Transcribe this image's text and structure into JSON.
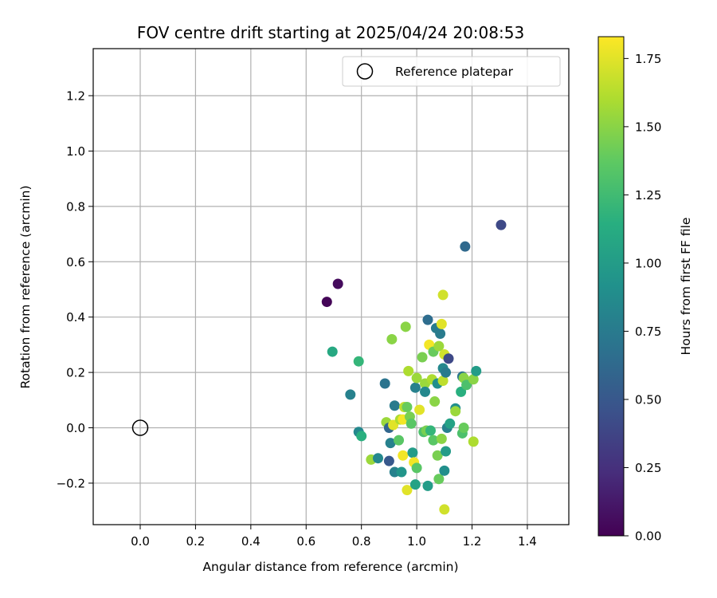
{
  "chart_data": {
    "type": "scatter",
    "title": "FOV centre drift starting at 2025/04/24 20:08:53",
    "xlabel": "Angular distance from reference (arcmin)",
    "ylabel": "Rotation from reference (arcmin)",
    "xlim": [
      -0.17,
      1.55
    ],
    "ylim": [
      -0.35,
      1.37
    ],
    "xticks": [
      "0.0",
      "0.2",
      "0.4",
      "0.6",
      "0.8",
      "1.0",
      "1.2",
      "1.4"
    ],
    "yticks": [
      "−0.2",
      "0.0",
      "0.2",
      "0.4",
      "0.6",
      "0.8",
      "1.0",
      "1.2"
    ],
    "grid": true,
    "legend": {
      "position": "top-right",
      "entries": [
        "Reference platepar"
      ]
    },
    "colorbar": {
      "label": "Hours from first FF file",
      "colormap": "viridis",
      "range": [
        0.0,
        1.83
      ],
      "ticks": [
        "0.00",
        "0.25",
        "0.50",
        "0.75",
        "1.00",
        "1.25",
        "1.50",
        "1.75"
      ]
    },
    "reference_point": {
      "x": 0.0,
      "y": 0.0
    },
    "points": [
      {
        "x": 0.675,
        "y": 0.455,
        "c": 0.02
      },
      {
        "x": 0.715,
        "y": 0.52,
        "c": 0.05
      },
      {
        "x": 1.305,
        "y": 0.733,
        "c": 0.4
      },
      {
        "x": 1.175,
        "y": 0.655,
        "c": 0.62
      },
      {
        "x": 0.695,
        "y": 0.275,
        "c": 1.1
      },
      {
        "x": 0.79,
        "y": 0.24,
        "c": 1.2
      },
      {
        "x": 0.76,
        "y": 0.12,
        "c": 0.8
      },
      {
        "x": 0.79,
        "y": -0.015,
        "c": 0.85
      },
      {
        "x": 0.8,
        "y": -0.03,
        "c": 1.15
      },
      {
        "x": 0.835,
        "y": -0.115,
        "c": 1.55
      },
      {
        "x": 0.86,
        "y": -0.11,
        "c": 0.85
      },
      {
        "x": 0.885,
        "y": 0.16,
        "c": 0.7
      },
      {
        "x": 0.89,
        "y": 0.02,
        "c": 1.55
      },
      {
        "x": 0.9,
        "y": -0.12,
        "c": 0.5
      },
      {
        "x": 0.9,
        "y": 0.0,
        "c": 0.6
      },
      {
        "x": 0.905,
        "y": -0.055,
        "c": 0.8
      },
      {
        "x": 0.91,
        "y": 0.32,
        "c": 1.5
      },
      {
        "x": 0.915,
        "y": 0.01,
        "c": 1.75
      },
      {
        "x": 0.92,
        "y": -0.16,
        "c": 0.8
      },
      {
        "x": 0.92,
        "y": 0.08,
        "c": 0.75
      },
      {
        "x": 0.935,
        "y": -0.045,
        "c": 1.35
      },
      {
        "x": 0.94,
        "y": 0.03,
        "c": 1.6
      },
      {
        "x": 0.945,
        "y": -0.16,
        "c": 0.95
      },
      {
        "x": 0.95,
        "y": 0.03,
        "c": 1.8
      },
      {
        "x": 0.95,
        "y": -0.1,
        "c": 1.8
      },
      {
        "x": 0.955,
        "y": 0.075,
        "c": 1.65
      },
      {
        "x": 0.96,
        "y": 0.365,
        "c": 1.5
      },
      {
        "x": 0.965,
        "y": 0.075,
        "c": 1.4
      },
      {
        "x": 0.965,
        "y": -0.225,
        "c": 1.75
      },
      {
        "x": 0.97,
        "y": 0.205,
        "c": 1.6
      },
      {
        "x": 0.975,
        "y": 0.04,
        "c": 1.45
      },
      {
        "x": 0.98,
        "y": 0.015,
        "c": 1.35
      },
      {
        "x": 0.985,
        "y": -0.09,
        "c": 1.0
      },
      {
        "x": 0.99,
        "y": -0.125,
        "c": 1.8
      },
      {
        "x": 0.995,
        "y": 0.145,
        "c": 0.8
      },
      {
        "x": 0.995,
        "y": -0.205,
        "c": 1.05
      },
      {
        "x": 1.0,
        "y": 0.18,
        "c": 1.55
      },
      {
        "x": 1.0,
        "y": -0.145,
        "c": 1.35
      },
      {
        "x": 1.01,
        "y": 0.065,
        "c": 1.75
      },
      {
        "x": 1.02,
        "y": 0.255,
        "c": 1.45
      },
      {
        "x": 1.025,
        "y": -0.015,
        "c": 1.3
      },
      {
        "x": 1.03,
        "y": 0.16,
        "c": 1.55
      },
      {
        "x": 1.03,
        "y": 0.13,
        "c": 0.85
      },
      {
        "x": 1.035,
        "y": -0.01,
        "c": 1.45
      },
      {
        "x": 1.04,
        "y": 0.39,
        "c": 0.65
      },
      {
        "x": 1.04,
        "y": -0.21,
        "c": 1.0
      },
      {
        "x": 1.045,
        "y": 0.3,
        "c": 1.8
      },
      {
        "x": 1.05,
        "y": -0.01,
        "c": 1.2
      },
      {
        "x": 1.055,
        "y": 0.175,
        "c": 1.6
      },
      {
        "x": 1.06,
        "y": 0.275,
        "c": 1.4
      },
      {
        "x": 1.06,
        "y": -0.045,
        "c": 1.35
      },
      {
        "x": 1.065,
        "y": 0.095,
        "c": 1.5
      },
      {
        "x": 1.07,
        "y": 0.36,
        "c": 0.75
      },
      {
        "x": 1.075,
        "y": 0.16,
        "c": 0.9
      },
      {
        "x": 1.075,
        "y": -0.1,
        "c": 1.45
      },
      {
        "x": 1.08,
        "y": 0.295,
        "c": 1.55
      },
      {
        "x": 1.08,
        "y": -0.185,
        "c": 1.4
      },
      {
        "x": 1.085,
        "y": 0.34,
        "c": 0.75
      },
      {
        "x": 1.09,
        "y": 0.375,
        "c": 1.75
      },
      {
        "x": 1.09,
        "y": -0.04,
        "c": 1.5
      },
      {
        "x": 1.095,
        "y": 0.48,
        "c": 1.7
      },
      {
        "x": 1.095,
        "y": 0.215,
        "c": 0.85
      },
      {
        "x": 1.095,
        "y": 0.17,
        "c": 1.65
      },
      {
        "x": 1.1,
        "y": 0.265,
        "c": 1.7
      },
      {
        "x": 1.1,
        "y": -0.155,
        "c": 0.9
      },
      {
        "x": 1.1,
        "y": -0.295,
        "c": 1.7
      },
      {
        "x": 1.105,
        "y": -0.085,
        "c": 1.0
      },
      {
        "x": 1.105,
        "y": 0.2,
        "c": 0.75
      },
      {
        "x": 1.11,
        "y": 0.0,
        "c": 0.8
      },
      {
        "x": 1.115,
        "y": 0.25,
        "c": 0.4
      },
      {
        "x": 1.12,
        "y": 0.015,
        "c": 1.05
      },
      {
        "x": 1.14,
        "y": 0.07,
        "c": 0.9
      },
      {
        "x": 1.14,
        "y": 0.06,
        "c": 1.55
      },
      {
        "x": 1.16,
        "y": 0.13,
        "c": 1.15
      },
      {
        "x": 1.165,
        "y": -0.02,
        "c": 1.3
      },
      {
        "x": 1.165,
        "y": 0.185,
        "c": 0.7
      },
      {
        "x": 1.17,
        "y": 0.18,
        "c": 1.5
      },
      {
        "x": 1.17,
        "y": 0.0,
        "c": 1.4
      },
      {
        "x": 1.18,
        "y": 0.155,
        "c": 1.3
      },
      {
        "x": 1.205,
        "y": 0.175,
        "c": 1.5
      },
      {
        "x": 1.205,
        "y": -0.05,
        "c": 1.6
      },
      {
        "x": 1.215,
        "y": 0.205,
        "c": 1.0
      }
    ]
  }
}
